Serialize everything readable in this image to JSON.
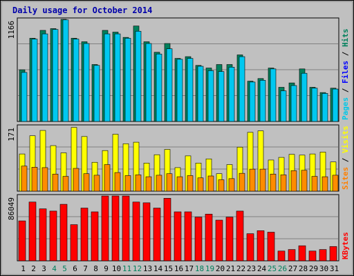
{
  "chart_data": [
    {
      "type": "bar",
      "panel": "pages-files-hits",
      "title": "Daily usage for October 2014",
      "ylabel_max": "1166",
      "legend": [
        {
          "name": "Pages",
          "color": "#00c8e8"
        },
        {
          "name": "Files",
          "color": "#0000ff"
        },
        {
          "name": "Hits",
          "color": "#00805c"
        }
      ],
      "categories": [
        "1",
        "2",
        "3",
        "4",
        "5",
        "6",
        "7",
        "8",
        "9",
        "10",
        "11",
        "12",
        "13",
        "14",
        "15",
        "16",
        "17",
        "18",
        "19",
        "20",
        "21",
        "22",
        "23",
        "24",
        "25",
        "26",
        "27",
        "28",
        "29",
        "30",
        "31"
      ],
      "weekend_days": [
        "4",
        "5",
        "11",
        "12",
        "18",
        "19",
        "25",
        "26"
      ],
      "ylim": [
        0,
        1166
      ],
      "series": [
        {
          "name": "Hits",
          "values": [
            590,
            950,
            1040,
            1060,
            1170,
            950,
            910,
            650,
            1040,
            1020,
            960,
            1090,
            910,
            790,
            890,
            720,
            740,
            640,
            610,
            650,
            650,
            760,
            460,
            490,
            610,
            390,
            440,
            600,
            390,
            330,
            380
          ]
        },
        {
          "name": "Pages",
          "values": [
            560,
            940,
            1000,
            1050,
            1160,
            940,
            890,
            640,
            1000,
            1000,
            950,
            1030,
            890,
            770,
            830,
            710,
            720,
            630,
            580,
            570,
            620,
            740,
            450,
            470,
            600,
            350,
            410,
            550,
            380,
            320,
            370
          ]
        }
      ]
    },
    {
      "type": "bar",
      "panel": "sites-visits",
      "ylabel_max": "171",
      "legend": [
        {
          "name": "Sites",
          "color": "#ff8000"
        },
        {
          "name": "Visits",
          "color": "#ffff00"
        }
      ],
      "categories": [
        "1",
        "2",
        "3",
        "4",
        "5",
        "6",
        "7",
        "8",
        "9",
        "10",
        "11",
        "12",
        "13",
        "14",
        "15",
        "16",
        "17",
        "18",
        "19",
        "20",
        "21",
        "22",
        "23",
        "24",
        "25",
        "26",
        "27",
        "28",
        "29",
        "30",
        "31"
      ],
      "ylim": [
        0,
        171
      ],
      "series": [
        {
          "name": "Visits",
          "values": [
            98,
            146,
            160,
            120,
            101,
            168,
            144,
            76,
            107,
            150,
            125,
            129,
            74,
            96,
            110,
            62,
            93,
            74,
            85,
            46,
            70,
            116,
            155,
            159,
            82,
            89,
            97,
            95,
            98,
            103,
            77
          ]
        },
        {
          "name": "Sites",
          "values": [
            66,
            63,
            62,
            45,
            39,
            60,
            46,
            42,
            70,
            49,
            41,
            43,
            38,
            42,
            46,
            38,
            41,
            35,
            40,
            30,
            33,
            47,
            58,
            58,
            45,
            43,
            54,
            55,
            39,
            38,
            42
          ]
        }
      ]
    },
    {
      "type": "bar",
      "panel": "kbytes",
      "ylabel_max": "86049",
      "legend": [
        {
          "name": "KBytes",
          "color": "#ff0000"
        }
      ],
      "categories": [
        "1",
        "2",
        "3",
        "4",
        "5",
        "6",
        "7",
        "8",
        "9",
        "10",
        "11",
        "12",
        "13",
        "14",
        "15",
        "16",
        "17",
        "18",
        "19",
        "20",
        "21",
        "22",
        "23",
        "24",
        "25",
        "26",
        "27",
        "28",
        "29",
        "30",
        "31"
      ],
      "ylim": [
        0,
        86049
      ],
      "series": [
        {
          "name": "KBytes",
          "values": [
            53000,
            78000,
            69000,
            66000,
            75000,
            48000,
            70000,
            65000,
            86000,
            88000,
            86000,
            78000,
            77000,
            70000,
            83000,
            65000,
            65000,
            58000,
            62000,
            54000,
            58000,
            66000,
            36000,
            40000,
            38000,
            13000,
            15000,
            20000,
            13000,
            15000,
            19000
          ]
        }
      ]
    }
  ]
}
